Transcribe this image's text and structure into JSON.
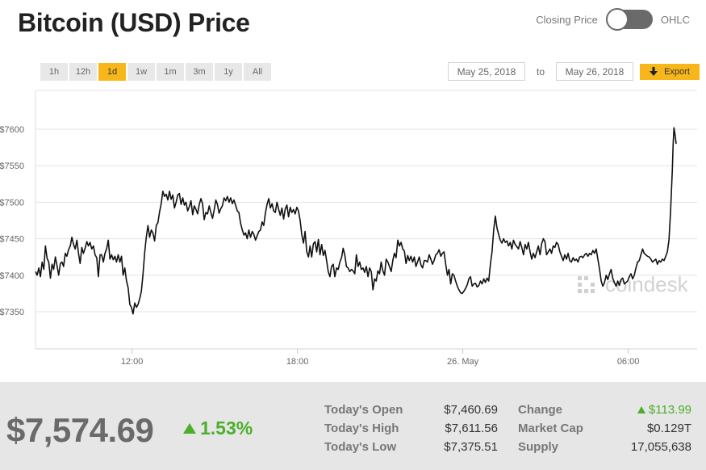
{
  "header": {
    "title": "Bitcoin (USD) Price"
  },
  "toggle": {
    "left_label": "Closing Price",
    "right_label": "OHLC"
  },
  "ranges": [
    {
      "label": "1h",
      "active": false
    },
    {
      "label": "12h",
      "active": false
    },
    {
      "label": "1d",
      "active": true
    },
    {
      "label": "1w",
      "active": false
    },
    {
      "label": "1m",
      "active": false
    },
    {
      "label": "3m",
      "active": false
    },
    {
      "label": "1y",
      "active": false
    },
    {
      "label": "All",
      "active": false
    }
  ],
  "date_range": {
    "from": "May 25, 2018",
    "separator": "to",
    "to": "May 26, 2018",
    "export_label": "Export"
  },
  "watermark": "coindesk",
  "footer": {
    "price": "$7,574.69",
    "change_pct": "1.53%",
    "stats": {
      "open_label": "Today's Open",
      "open_value": "$7,460.69",
      "high_label": "Today's High",
      "high_value": "$7,611.56",
      "low_label": "Today's Low",
      "low_value": "$7,375.51",
      "change_label": "Change",
      "change_value": "$113.99",
      "cap_label": "Market Cap",
      "cap_value": "$0.129T",
      "supply_label": "Supply",
      "supply_value": "17,055,638"
    }
  },
  "colors": {
    "accent": "#f7b71a",
    "up": "#4caf2a",
    "line": "#111111",
    "grid": "#e3e3e3"
  },
  "chart_data": {
    "type": "line",
    "x_unit": "hours",
    "x_start": "2018-05-25 08:30",
    "ylim": [
      7325,
      7625
    ],
    "grid": true,
    "yticks": [
      {
        "value": 7600,
        "label": "$7600"
      },
      {
        "value": 7550,
        "label": "$7550"
      },
      {
        "value": 7500,
        "label": "$7500"
      },
      {
        "value": 7450,
        "label": "$7450"
      },
      {
        "value": 7400,
        "label": "$7400"
      },
      {
        "value": 7350,
        "label": "$7350"
      }
    ],
    "xticks": [
      {
        "value": 3.5,
        "label": "12:00"
      },
      {
        "value": 9.5,
        "label": "18:00"
      },
      {
        "value": 15.5,
        "label": "26. May"
      },
      {
        "value": 21.5,
        "label": "06:00"
      }
    ],
    "xlim": [
      0,
      24
    ],
    "points": [
      [
        0.0,
        7405
      ],
      [
        0.06,
        7400
      ],
      [
        0.12,
        7410
      ],
      [
        0.18,
        7398
      ],
      [
        0.24,
        7418
      ],
      [
        0.3,
        7408
      ],
      [
        0.36,
        7440
      ],
      [
        0.42,
        7423
      ],
      [
        0.48,
        7418
      ],
      [
        0.54,
        7396
      ],
      [
        0.6,
        7415
      ],
      [
        0.66,
        7408
      ],
      [
        0.72,
        7425
      ],
      [
        0.78,
        7413
      ],
      [
        0.84,
        7400
      ],
      [
        0.9,
        7416
      ],
      [
        0.96,
        7418
      ],
      [
        1.02,
        7412
      ],
      [
        1.08,
        7430
      ],
      [
        1.14,
        7426
      ],
      [
        1.2,
        7435
      ],
      [
        1.26,
        7440
      ],
      [
        1.32,
        7452
      ],
      [
        1.38,
        7442
      ],
      [
        1.44,
        7436
      ],
      [
        1.5,
        7448
      ],
      [
        1.56,
        7430
      ],
      [
        1.62,
        7416
      ],
      [
        1.68,
        7438
      ],
      [
        1.74,
        7430
      ],
      [
        1.8,
        7437
      ],
      [
        1.86,
        7446
      ],
      [
        1.92,
        7440
      ],
      [
        1.98,
        7445
      ],
      [
        2.04,
        7436
      ],
      [
        2.1,
        7440
      ],
      [
        2.16,
        7428
      ],
      [
        2.22,
        7424
      ],
      [
        2.28,
        7398
      ],
      [
        2.34,
        7428
      ],
      [
        2.4,
        7428
      ],
      [
        2.46,
        7418
      ],
      [
        2.52,
        7430
      ],
      [
        2.58,
        7436
      ],
      [
        2.64,
        7448
      ],
      [
        2.7,
        7422
      ],
      [
        2.76,
        7428
      ],
      [
        2.82,
        7421
      ],
      [
        2.88,
        7426
      ],
      [
        2.94,
        7418
      ],
      [
        3.0,
        7428
      ],
      [
        3.06,
        7418
      ],
      [
        3.12,
        7426
      ],
      [
        3.18,
        7400
      ],
      [
        3.24,
        7410
      ],
      [
        3.3,
        7392
      ],
      [
        3.36,
        7383
      ],
      [
        3.42,
        7360
      ],
      [
        3.48,
        7356
      ],
      [
        3.54,
        7347
      ],
      [
        3.6,
        7362
      ],
      [
        3.66,
        7356
      ],
      [
        3.72,
        7360
      ],
      [
        3.78,
        7368
      ],
      [
        3.84,
        7378
      ],
      [
        3.9,
        7402
      ],
      [
        3.96,
        7431
      ],
      [
        4.02,
        7452
      ],
      [
        4.08,
        7468
      ],
      [
        4.14,
        7452
      ],
      [
        4.2,
        7462
      ],
      [
        4.26,
        7458
      ],
      [
        4.32,
        7447
      ],
      [
        4.38,
        7468
      ],
      [
        4.44,
        7472
      ],
      [
        4.5,
        7487
      ],
      [
        4.56,
        7498
      ],
      [
        4.62,
        7515
      ],
      [
        4.68,
        7508
      ],
      [
        4.74,
        7511
      ],
      [
        4.8,
        7503
      ],
      [
        4.86,
        7515
      ],
      [
        4.92,
        7504
      ],
      [
        4.98,
        7510
      ],
      [
        5.04,
        7492
      ],
      [
        5.1,
        7500
      ],
      [
        5.16,
        7510
      ],
      [
        5.22,
        7512
      ],
      [
        5.28,
        7497
      ],
      [
        5.34,
        7506
      ],
      [
        5.4,
        7496
      ],
      [
        5.46,
        7500
      ],
      [
        5.52,
        7488
      ],
      [
        5.58,
        7494
      ],
      [
        5.64,
        7502
      ],
      [
        5.7,
        7483
      ],
      [
        5.76,
        7495
      ],
      [
        5.82,
        7490
      ],
      [
        5.88,
        7484
      ],
      [
        5.94,
        7497
      ],
      [
        6.0,
        7505
      ],
      [
        6.06,
        7498
      ],
      [
        6.12,
        7476
      ],
      [
        6.18,
        7486
      ],
      [
        6.24,
        7484
      ],
      [
        6.3,
        7495
      ],
      [
        6.36,
        7486
      ],
      [
        6.42,
        7478
      ],
      [
        6.48,
        7489
      ],
      [
        6.54,
        7503
      ],
      [
        6.6,
        7497
      ],
      [
        6.66,
        7485
      ],
      [
        6.72,
        7491
      ],
      [
        6.78,
        7495
      ],
      [
        6.84,
        7506
      ],
      [
        6.9,
        7502
      ],
      [
        6.96,
        7508
      ],
      [
        7.02,
        7500
      ],
      [
        7.08,
        7506
      ],
      [
        7.14,
        7498
      ],
      [
        7.2,
        7503
      ],
      [
        7.26,
        7496
      ],
      [
        7.32,
        7488
      ],
      [
        7.38,
        7486
      ],
      [
        7.44,
        7471
      ],
      [
        7.5,
        7462
      ],
      [
        7.56,
        7455
      ],
      [
        7.62,
        7458
      ],
      [
        7.68,
        7450
      ],
      [
        7.74,
        7462
      ],
      [
        7.8,
        7452
      ],
      [
        7.86,
        7460
      ],
      [
        7.92,
        7456
      ],
      [
        7.98,
        7448
      ],
      [
        8.04,
        7454
      ],
      [
        8.1,
        7460
      ],
      [
        8.16,
        7462
      ],
      [
        8.22,
        7473
      ],
      [
        8.28,
        7468
      ],
      [
        8.34,
        7485
      ],
      [
        8.4,
        7497
      ],
      [
        8.46,
        7505
      ],
      [
        8.52,
        7492
      ],
      [
        8.58,
        7498
      ],
      [
        8.64,
        7488
      ],
      [
        8.7,
        7486
      ],
      [
        8.76,
        7500
      ],
      [
        8.82,
        7490
      ],
      [
        8.88,
        7482
      ],
      [
        8.94,
        7492
      ],
      [
        9.0,
        7477
      ],
      [
        9.06,
        7491
      ],
      [
        9.12,
        7496
      ],
      [
        9.18,
        7480
      ],
      [
        9.24,
        7493
      ],
      [
        9.3,
        7486
      ],
      [
        9.36,
        7490
      ],
      [
        9.42,
        7484
      ],
      [
        9.48,
        7493
      ],
      [
        9.54,
        7488
      ],
      [
        9.6,
        7475
      ],
      [
        9.66,
        7455
      ],
      [
        9.72,
        7444
      ],
      [
        9.78,
        7460
      ],
      [
        9.84,
        7432
      ],
      [
        9.9,
        7425
      ],
      [
        9.96,
        7440
      ],
      [
        10.02,
        7425
      ],
      [
        10.08,
        7443
      ],
      [
        10.14,
        7446
      ],
      [
        10.2,
        7432
      ],
      [
        10.26,
        7449
      ],
      [
        10.32,
        7428
      ],
      [
        10.38,
        7442
      ],
      [
        10.44,
        7427
      ],
      [
        10.5,
        7434
      ],
      [
        10.56,
        7420
      ],
      [
        10.62,
        7405
      ],
      [
        10.68,
        7398
      ],
      [
        10.74,
        7412
      ],
      [
        10.8,
        7415
      ],
      [
        10.86,
        7398
      ],
      [
        10.92,
        7410
      ],
      [
        10.98,
        7408
      ],
      [
        11.04,
        7418
      ],
      [
        11.1,
        7424
      ],
      [
        11.16,
        7437
      ],
      [
        11.22,
        7428
      ],
      [
        11.28,
        7412
      ],
      [
        11.34,
        7410
      ],
      [
        11.4,
        7405
      ],
      [
        11.46,
        7408
      ],
      [
        11.52,
        7406
      ],
      [
        11.58,
        7402
      ],
      [
        11.64,
        7428
      ],
      [
        11.7,
        7412
      ],
      [
        11.76,
        7418
      ],
      [
        11.82,
        7408
      ],
      [
        11.88,
        7410
      ],
      [
        11.94,
        7404
      ],
      [
        12.0,
        7412
      ],
      [
        12.06,
        7398
      ],
      [
        12.12,
        7410
      ],
      [
        12.18,
        7405
      ],
      [
        12.24,
        7380
      ],
      [
        12.3,
        7395
      ],
      [
        12.36,
        7392
      ],
      [
        12.42,
        7406
      ],
      [
        12.48,
        7402
      ],
      [
        12.54,
        7418
      ],
      [
        12.6,
        7406
      ],
      [
        12.66,
        7400
      ],
      [
        12.72,
        7422
      ],
      [
        12.78,
        7418
      ],
      [
        12.84,
        7412
      ],
      [
        12.9,
        7405
      ],
      [
        12.96,
        7420
      ],
      [
        13.02,
        7430
      ],
      [
        13.08,
        7424
      ],
      [
        13.14,
        7448
      ],
      [
        13.2,
        7440
      ],
      [
        13.26,
        7445
      ],
      [
        13.32,
        7436
      ],
      [
        13.38,
        7433
      ],
      [
        13.44,
        7416
      ],
      [
        13.5,
        7427
      ],
      [
        13.56,
        7420
      ],
      [
        13.62,
        7426
      ],
      [
        13.68,
        7418
      ],
      [
        13.74,
        7425
      ],
      [
        13.8,
        7412
      ],
      [
        13.86,
        7418
      ],
      [
        13.92,
        7425
      ],
      [
        13.98,
        7414
      ],
      [
        14.04,
        7410
      ],
      [
        14.1,
        7420
      ],
      [
        14.16,
        7420
      ],
      [
        14.22,
        7418
      ],
      [
        14.28,
        7428
      ],
      [
        14.34,
        7422
      ],
      [
        14.4,
        7415
      ],
      [
        14.46,
        7420
      ],
      [
        14.52,
        7428
      ],
      [
        14.58,
        7430
      ],
      [
        14.64,
        7435
      ],
      [
        14.7,
        7426
      ],
      [
        14.76,
        7430
      ],
      [
        14.82,
        7432
      ],
      [
        14.88,
        7415
      ],
      [
        14.94,
        7400
      ],
      [
        15.0,
        7408
      ],
      [
        15.06,
        7388
      ],
      [
        15.12,
        7402
      ],
      [
        15.18,
        7400
      ],
      [
        15.24,
        7392
      ],
      [
        15.3,
        7385
      ],
      [
        15.36,
        7380
      ],
      [
        15.42,
        7376
      ],
      [
        15.48,
        7375
      ],
      [
        15.54,
        7378
      ],
      [
        15.6,
        7382
      ],
      [
        15.66,
        7387
      ],
      [
        15.72,
        7395
      ],
      [
        15.78,
        7398
      ],
      [
        15.84,
        7385
      ],
      [
        15.9,
        7388
      ],
      [
        15.96,
        7389
      ],
      [
        16.02,
        7384
      ],
      [
        16.08,
        7386
      ],
      [
        16.14,
        7392
      ],
      [
        16.2,
        7388
      ],
      [
        16.26,
        7395
      ],
      [
        16.32,
        7390
      ],
      [
        16.38,
        7396
      ],
      [
        16.44,
        7392
      ],
      [
        16.5,
        7415
      ],
      [
        16.56,
        7432
      ],
      [
        16.62,
        7462
      ],
      [
        16.68,
        7481
      ],
      [
        16.74,
        7465
      ],
      [
        16.8,
        7456
      ],
      [
        16.86,
        7448
      ],
      [
        16.92,
        7444
      ],
      [
        16.98,
        7450
      ],
      [
        17.04,
        7445
      ],
      [
        17.1,
        7447
      ],
      [
        17.16,
        7440
      ],
      [
        17.22,
        7445
      ],
      [
        17.28,
        7436
      ],
      [
        17.34,
        7448
      ],
      [
        17.4,
        7442
      ],
      [
        17.46,
        7439
      ],
      [
        17.52,
        7436
      ],
      [
        17.58,
        7446
      ],
      [
        17.64,
        7438
      ],
      [
        17.7,
        7428
      ],
      [
        17.76,
        7442
      ],
      [
        17.82,
        7436
      ],
      [
        17.88,
        7445
      ],
      [
        17.94,
        7432
      ],
      [
        18.0,
        7422
      ],
      [
        18.06,
        7430
      ],
      [
        18.12,
        7424
      ],
      [
        18.18,
        7432
      ],
      [
        18.24,
        7440
      ],
      [
        18.3,
        7428
      ],
      [
        18.36,
        7443
      ],
      [
        18.42,
        7450
      ],
      [
        18.48,
        7446
      ],
      [
        18.54,
        7428
      ],
      [
        18.6,
        7432
      ],
      [
        18.66,
        7436
      ],
      [
        18.72,
        7430
      ],
      [
        18.78,
        7440
      ],
      [
        18.84,
        7438
      ],
      [
        18.9,
        7445
      ],
      [
        18.96,
        7442
      ],
      [
        19.02,
        7432
      ],
      [
        19.08,
        7426
      ],
      [
        19.14,
        7420
      ],
      [
        19.2,
        7428
      ],
      [
        19.26,
        7422
      ],
      [
        19.32,
        7430
      ],
      [
        19.38,
        7420
      ],
      [
        19.44,
        7418
      ],
      [
        19.5,
        7424
      ],
      [
        19.56,
        7420
      ],
      [
        19.62,
        7422
      ],
      [
        19.68,
        7418
      ],
      [
        19.74,
        7425
      ],
      [
        19.8,
        7426
      ],
      [
        19.86,
        7424
      ],
      [
        19.92,
        7428
      ],
      [
        19.98,
        7430
      ],
      [
        20.04,
        7426
      ],
      [
        20.1,
        7430
      ],
      [
        20.16,
        7428
      ],
      [
        20.22,
        7434
      ],
      [
        20.28,
        7430
      ],
      [
        20.34,
        7436
      ],
      [
        20.4,
        7422
      ],
      [
        20.46,
        7408
      ],
      [
        20.52,
        7392
      ],
      [
        20.58,
        7385
      ],
      [
        20.64,
        7390
      ],
      [
        20.7,
        7400
      ],
      [
        20.76,
        7394
      ],
      [
        20.82,
        7402
      ],
      [
        20.88,
        7408
      ],
      [
        20.94,
        7396
      ],
      [
        21.0,
        7390
      ],
      [
        21.06,
        7385
      ],
      [
        21.12,
        7392
      ],
      [
        21.18,
        7386
      ],
      [
        21.24,
        7394
      ],
      [
        21.3,
        7396
      ],
      [
        21.36,
        7388
      ],
      [
        21.42,
        7390
      ],
      [
        21.48,
        7392
      ],
      [
        21.54,
        7398
      ],
      [
        21.6,
        7402
      ],
      [
        21.66,
        7395
      ],
      [
        21.72,
        7400
      ],
      [
        21.78,
        7410
      ],
      [
        21.84,
        7418
      ],
      [
        21.9,
        7420
      ],
      [
        21.96,
        7428
      ],
      [
        22.02,
        7436
      ],
      [
        22.08,
        7430
      ],
      [
        22.14,
        7428
      ],
      [
        22.2,
        7426
      ],
      [
        22.26,
        7425
      ],
      [
        22.32,
        7422
      ],
      [
        22.38,
        7418
      ],
      [
        22.44,
        7420
      ],
      [
        22.5,
        7422
      ],
      [
        22.56,
        7415
      ],
      [
        22.62,
        7420
      ],
      [
        22.68,
        7418
      ],
      [
        22.74,
        7422
      ],
      [
        22.8,
        7420
      ],
      [
        22.86,
        7426
      ],
      [
        22.92,
        7432
      ],
      [
        22.98,
        7448
      ],
      [
        23.04,
        7490
      ],
      [
        23.1,
        7545
      ],
      [
        23.13,
        7580
      ],
      [
        23.16,
        7602
      ],
      [
        23.2,
        7592
      ],
      [
        23.24,
        7580
      ]
    ]
  }
}
